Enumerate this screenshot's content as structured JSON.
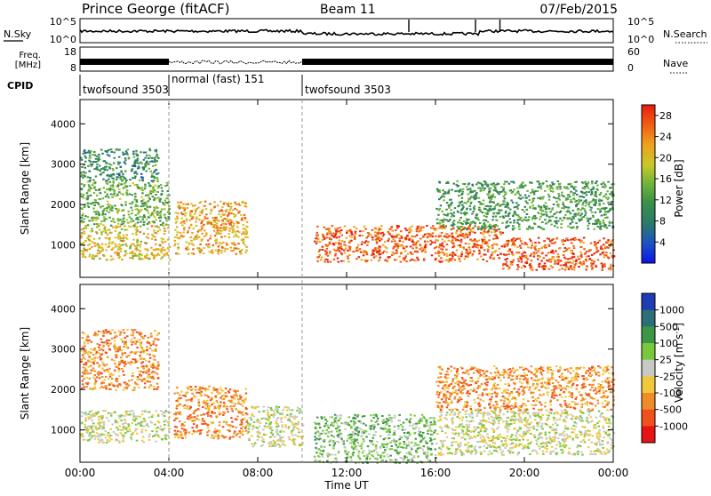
{
  "header": {
    "station": "Prince George (fitACF)",
    "beam": "Beam 11",
    "date": "07/Feb/2015"
  },
  "noise_panel": {
    "left_label": "N.Sky",
    "right_label": "N.Search",
    "left_ticks": [
      "10^5",
      "10^0"
    ],
    "right_ticks": [
      "10^5",
      "10^0"
    ]
  },
  "freq_panel": {
    "left_label_1": "Freq.",
    "left_label_2": "[MHz]",
    "right_label": "Nave",
    "left_ticks": [
      "18",
      "8"
    ],
    "right_ticks": [
      "60",
      "0"
    ]
  },
  "cpid": {
    "label": "CPID",
    "segments": [
      {
        "name": "twofsound 3503",
        "start_h": 0
      },
      {
        "name": "normal (fast) 151",
        "start_h": 4
      },
      {
        "name": "twofsound 3503",
        "start_h": 10
      }
    ]
  },
  "time_axis": {
    "label": "Time UT",
    "ticks": [
      "00:00",
      "04:00",
      "08:00",
      "12:00",
      "16:00",
      "20:00",
      "00:00"
    ],
    "range_h": [
      0,
      24
    ]
  },
  "chart_data": [
    {
      "type": "heatmap",
      "name": "power",
      "ylabel": "Slant Range [km]",
      "yticks": [
        "4000",
        "3000",
        "2000",
        "1000"
      ],
      "ylim": [
        200,
        4600
      ],
      "colorbar": {
        "label": "Power [dB]",
        "ticks": [
          "28",
          "24",
          "20",
          "16",
          "12",
          "8",
          "4"
        ],
        "range": [
          0,
          30
        ],
        "colors": [
          "#0a14e6",
          "#1e4fc8",
          "#2d7a6a",
          "#3a8f48",
          "#6fb43a",
          "#c8c828",
          "#f0a01e",
          "#f05a14",
          "#e61e0f"
        ]
      },
      "regions": [
        {
          "t0": 0,
          "t1": 4,
          "r0": 650,
          "r1": 1500,
          "level": 20
        },
        {
          "t0": 0,
          "t1": 4,
          "r0": 1500,
          "r1": 2600,
          "level": 14
        },
        {
          "t0": 0,
          "t1": 3.5,
          "r0": 2600,
          "r1": 3400,
          "level": 10
        },
        {
          "t0": 4.2,
          "t1": 7.5,
          "r0": 800,
          "r1": 2100,
          "level": 22
        },
        {
          "t0": 10.5,
          "t1": 19,
          "r0": 600,
          "r1": 1500,
          "level": 26
        },
        {
          "t0": 19,
          "t1": 24,
          "r0": 400,
          "r1": 1200,
          "level": 27
        },
        {
          "t0": 16,
          "t1": 24,
          "r0": 1400,
          "r1": 2600,
          "level": 12
        }
      ]
    },
    {
      "type": "heatmap",
      "name": "velocity",
      "ylabel": "Slant Range [km]",
      "yticks": [
        "4000",
        "3000",
        "2000",
        "1000"
      ],
      "ylim": [
        200,
        4600
      ],
      "colorbar": {
        "label": "Velocity [m s^-1]",
        "ticks": [
          "1000",
          "500",
          "100",
          "25",
          "-25",
          "-100",
          "-500",
          "-1000"
        ],
        "colors": [
          "#1e3cb4",
          "#2d6e78",
          "#3c9646",
          "#78c83c",
          "#c8c8c4",
          "#f0c83c",
          "#f08c28",
          "#f0501e",
          "#e61414"
        ]
      },
      "regions": [
        {
          "t0": 0,
          "t1": 4,
          "r0": 700,
          "r1": 1500,
          "level": 4
        },
        {
          "t0": 0,
          "t1": 3.5,
          "r0": 2000,
          "r1": 3500,
          "level": 6
        },
        {
          "t0": 4.2,
          "t1": 7.5,
          "r0": 800,
          "r1": 2100,
          "level": 6
        },
        {
          "t0": 7.5,
          "t1": 10,
          "r0": 600,
          "r1": 1600,
          "level": 4
        },
        {
          "t0": 10.5,
          "t1": 16,
          "r0": 200,
          "r1": 1400,
          "level": 3
        },
        {
          "t0": 16,
          "t1": 24,
          "r0": 400,
          "r1": 1500,
          "level": 4
        },
        {
          "t0": 16,
          "t1": 24,
          "r0": 1500,
          "r1": 2600,
          "level": 6
        }
      ]
    }
  ]
}
